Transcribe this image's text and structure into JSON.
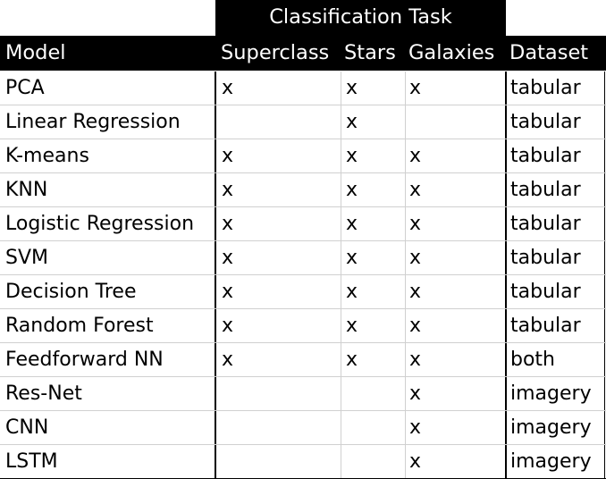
{
  "table": {
    "group_header": "Classification Task",
    "columns": [
      "Model",
      "Superclass",
      "Stars",
      "Galaxies",
      "Dataset"
    ],
    "rows": [
      {
        "model": "PCA",
        "superclass": "x",
        "stars": "x",
        "galaxies": "x",
        "dataset": "tabular"
      },
      {
        "model": "Linear Regression",
        "superclass": "",
        "stars": "x",
        "galaxies": "",
        "dataset": "tabular"
      },
      {
        "model": "K-means",
        "superclass": "x",
        "stars": "x",
        "galaxies": "x",
        "dataset": "tabular"
      },
      {
        "model": "KNN",
        "superclass": "x",
        "stars": "x",
        "galaxies": "x",
        "dataset": "tabular"
      },
      {
        "model": "Logistic Regression",
        "superclass": "x",
        "stars": "x",
        "galaxies": "x",
        "dataset": "tabular"
      },
      {
        "model": "SVM",
        "superclass": "x",
        "stars": "x",
        "galaxies": "x",
        "dataset": "tabular"
      },
      {
        "model": "Decision Tree",
        "superclass": "x",
        "stars": "x",
        "galaxies": "x",
        "dataset": "tabular"
      },
      {
        "model": "Random Forest",
        "superclass": "x",
        "stars": "x",
        "galaxies": "x",
        "dataset": "tabular"
      },
      {
        "model": "Feedforward NN",
        "superclass": "x",
        "stars": "x",
        "galaxies": "x",
        "dataset": "both"
      },
      {
        "model": "Res-Net",
        "superclass": "",
        "stars": "",
        "galaxies": "x",
        "dataset": "imagery"
      },
      {
        "model": "CNN",
        "superclass": "",
        "stars": "",
        "galaxies": "x",
        "dataset": "imagery"
      },
      {
        "model": "LSTM",
        "superclass": "",
        "stars": "",
        "galaxies": "x",
        "dataset": "imagery"
      }
    ]
  }
}
